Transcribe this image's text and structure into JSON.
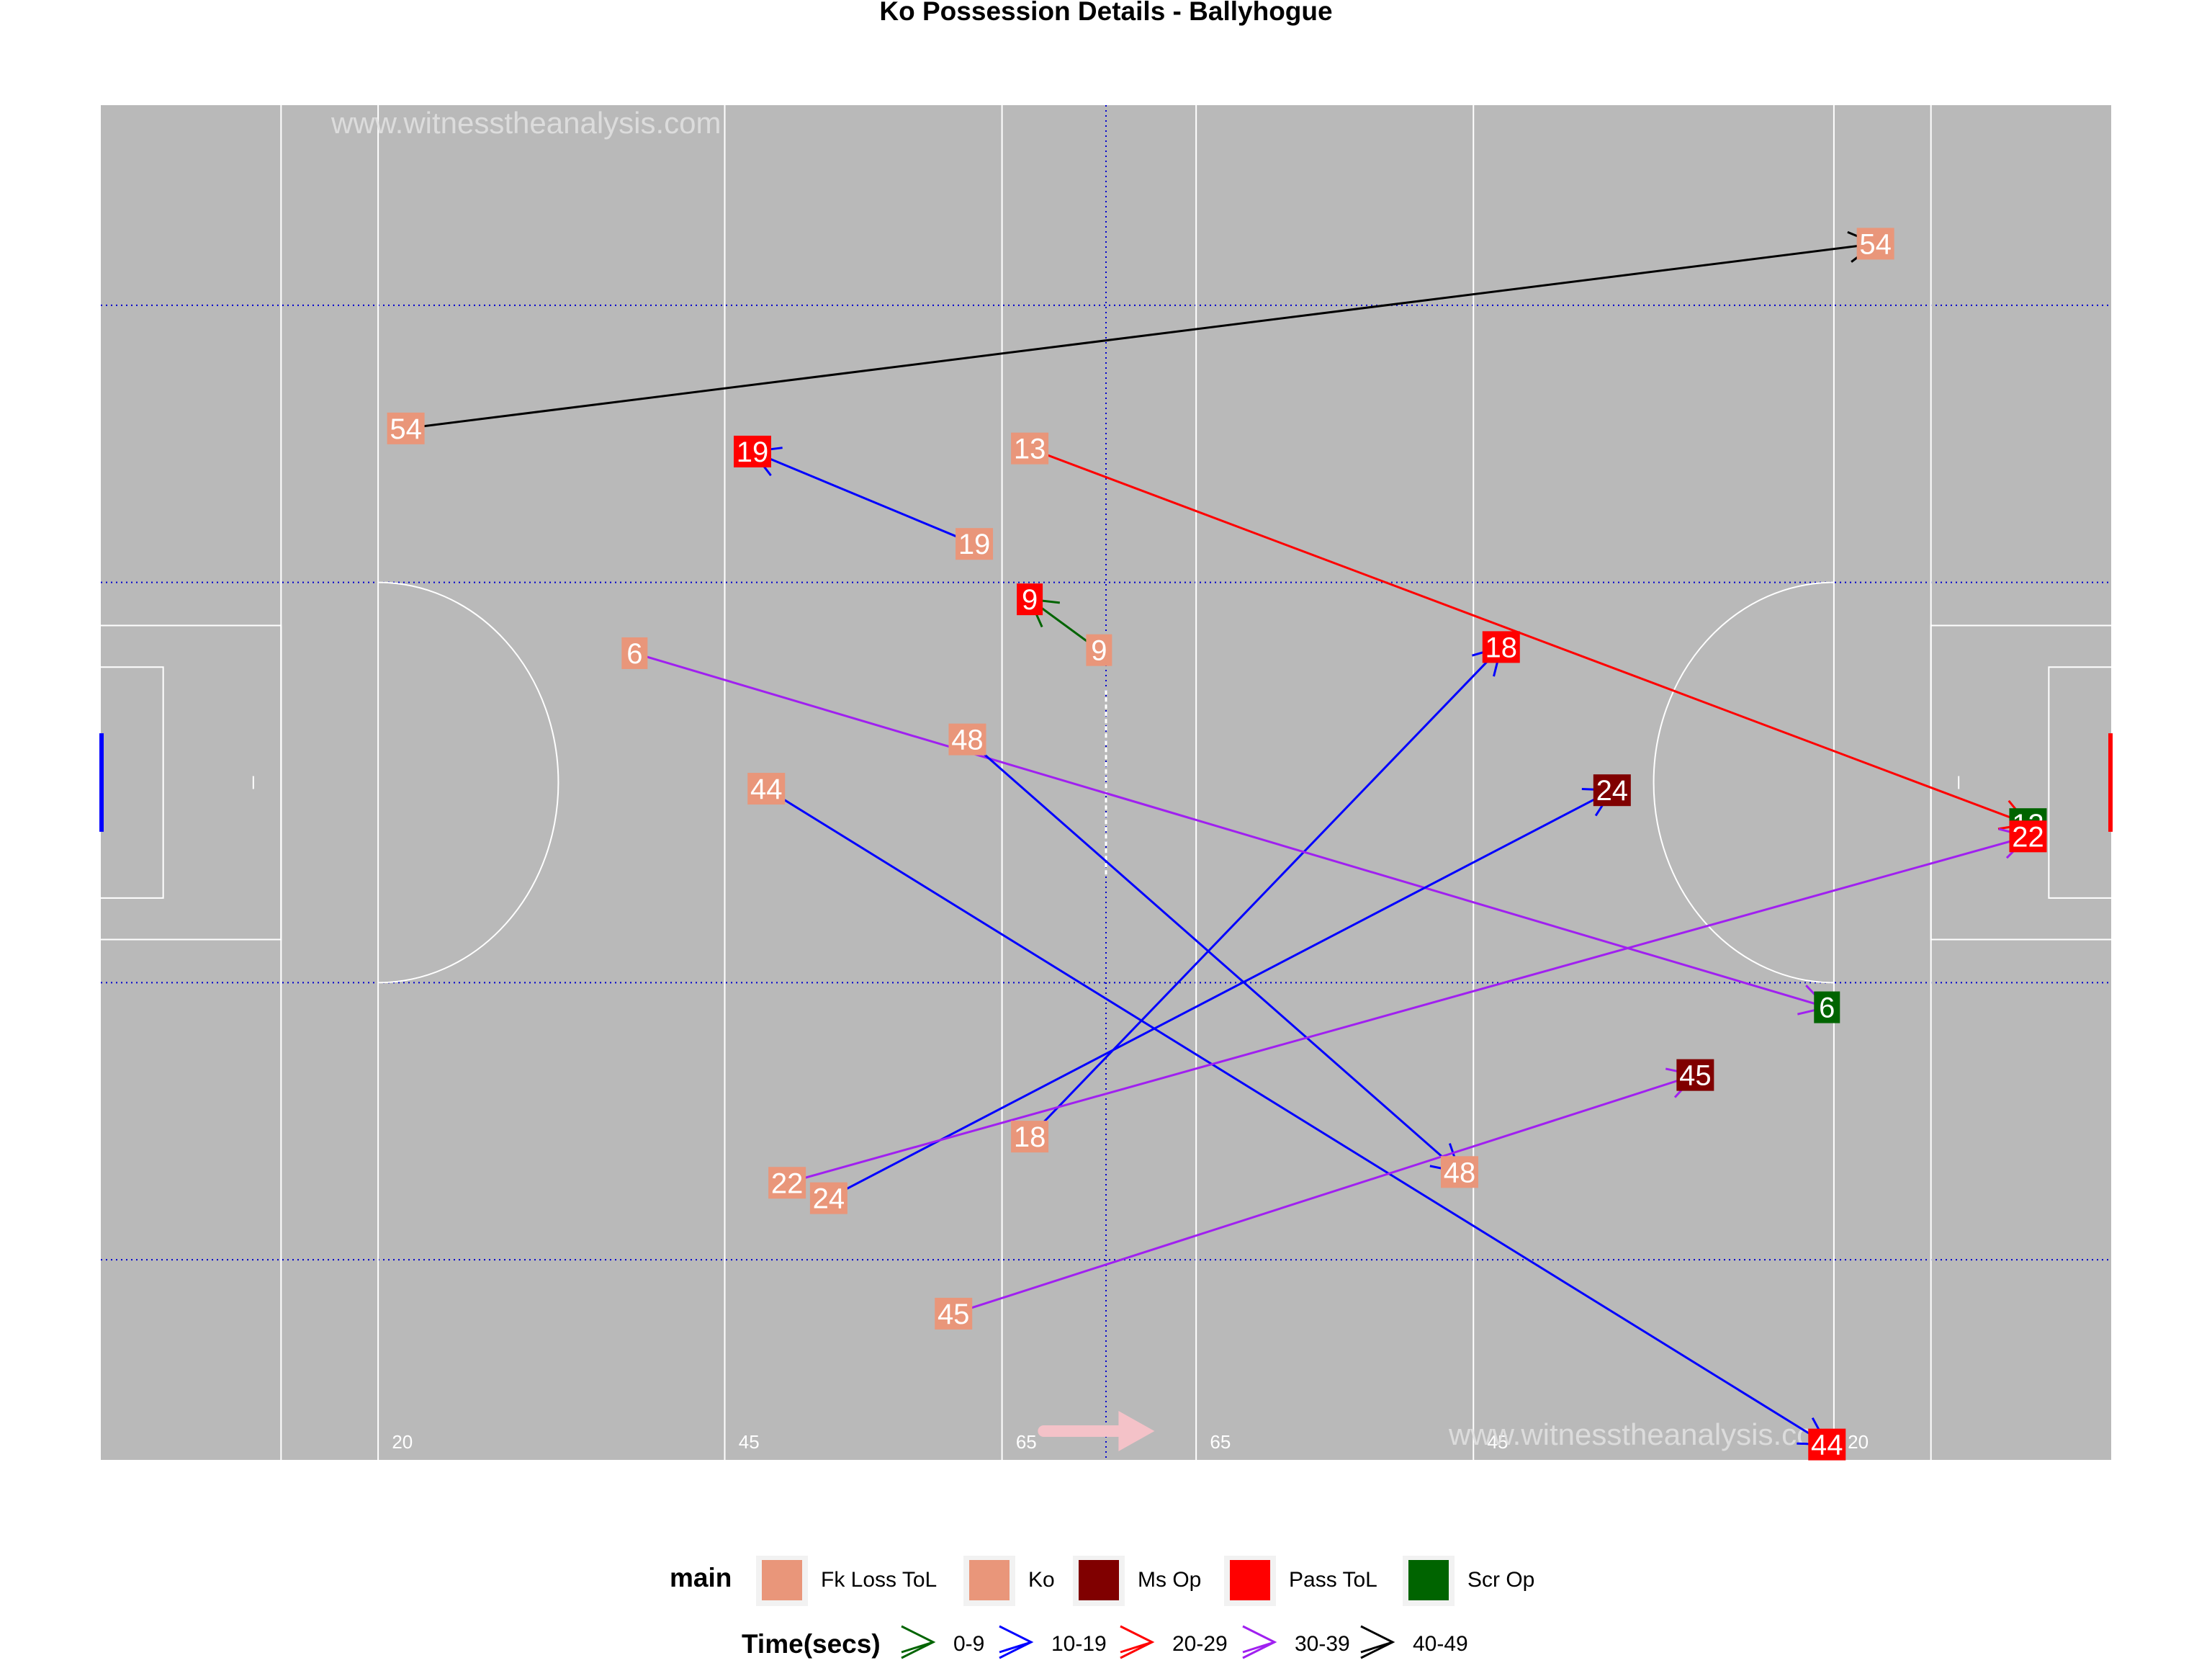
{
  "chart_data": {
    "type": "scatter",
    "title": "Ko Possession Details - Ballyhogue",
    "watermark": "www.witnesstheanalysis.com",
    "xlim": [
      0,
      145
    ],
    "ylim": [
      0,
      88
    ],
    "field_lines": {
      "solid_x": [
        13,
        20,
        45,
        65,
        79,
        99,
        125,
        132
      ],
      "dotted_x": [
        72.5
      ],
      "dotted_y": [
        13,
        31,
        57,
        75
      ],
      "distance_labels": [
        {
          "x": 21,
          "label": "20"
        },
        {
          "x": 46,
          "label": "45"
        },
        {
          "x": 66,
          "label": "65"
        },
        {
          "x": 80,
          "label": "65"
        },
        {
          "x": 100,
          "label": "45"
        },
        {
          "x": 126,
          "label": "20"
        }
      ]
    },
    "attack_direction": "right",
    "legend_main": {
      "title": "main",
      "entries": [
        {
          "label": "Fk Loss ToL",
          "color": "#E9967A"
        },
        {
          "label": "Ko",
          "color": "#E9967A"
        },
        {
          "label": "Ms Op",
          "color": "#800000"
        },
        {
          "label": "Pass ToL",
          "color": "#FF0000"
        },
        {
          "label": "Scr Op",
          "color": "#006400"
        }
      ]
    },
    "legend_time": {
      "title": "Time(secs)",
      "entries": [
        {
          "label": "0-9",
          "color": "#006400"
        },
        {
          "label": "10-19",
          "color": "#0000FF"
        },
        {
          "label": "20-29",
          "color": "#FF0000"
        },
        {
          "label": "30-39",
          "color": "#A020F0"
        },
        {
          "label": "40-49",
          "color": "#000000"
        }
      ]
    },
    "possessions": [
      {
        "id": "54",
        "time_band": "40-49",
        "start": {
          "x": 22,
          "y": 67,
          "type": "Ko"
        },
        "end": {
          "x": 128,
          "y": 79,
          "type": "Fk Loss ToL"
        }
      },
      {
        "id": "19",
        "time_band": "10-19",
        "start": {
          "x": 63,
          "y": 59.5,
          "type": "Ko"
        },
        "end": {
          "x": 47,
          "y": 65.5,
          "type": "Pass ToL"
        }
      },
      {
        "id": "13",
        "time_band": "20-29",
        "start": {
          "x": 67,
          "y": 65.7,
          "type": "Ko"
        },
        "end": {
          "x": 139,
          "y": 41.3,
          "type": "Scr Op"
        }
      },
      {
        "id": "9",
        "time_band": "0-9",
        "start": {
          "x": 72,
          "y": 52.6,
          "type": "Ko"
        },
        "end": {
          "x": 67,
          "y": 55.9,
          "type": "Pass ToL"
        }
      },
      {
        "id": "18",
        "time_band": "10-19",
        "start": {
          "x": 67,
          "y": 21,
          "type": "Ko"
        },
        "end": {
          "x": 101,
          "y": 52.8,
          "type": "Pass ToL"
        }
      },
      {
        "id": "6",
        "time_band": "30-39",
        "start": {
          "x": 38.5,
          "y": 52.4,
          "type": "Ko"
        },
        "end": {
          "x": 124.5,
          "y": 29.4,
          "type": "Scr Op"
        }
      },
      {
        "id": "48",
        "time_band": "10-19",
        "start": {
          "x": 62.5,
          "y": 46.8,
          "type": "Ko"
        },
        "end": {
          "x": 98,
          "y": 18.7,
          "type": "Ko"
        }
      },
      {
        "id": "24",
        "time_band": "10-19",
        "start": {
          "x": 52.5,
          "y": 17,
          "type": "Ko"
        },
        "end": {
          "x": 109,
          "y": 43.5,
          "type": "Ms Op"
        }
      },
      {
        "id": "44",
        "time_band": "10-19",
        "start": {
          "x": 48,
          "y": 43.6,
          "type": "Fk Loss ToL"
        },
        "end": {
          "x": 124.5,
          "y": 1,
          "type": "Pass ToL"
        }
      },
      {
        "id": "22",
        "time_band": "30-39",
        "start": {
          "x": 49.5,
          "y": 18,
          "type": "Ko"
        },
        "end": {
          "x": 139,
          "y": 40.5,
          "type": "Pass ToL"
        }
      },
      {
        "id": "45",
        "time_band": "30-39",
        "start": {
          "x": 61.5,
          "y": 9.5,
          "type": "Ko"
        },
        "end": {
          "x": 115,
          "y": 25,
          "type": "Ms Op"
        }
      }
    ]
  }
}
